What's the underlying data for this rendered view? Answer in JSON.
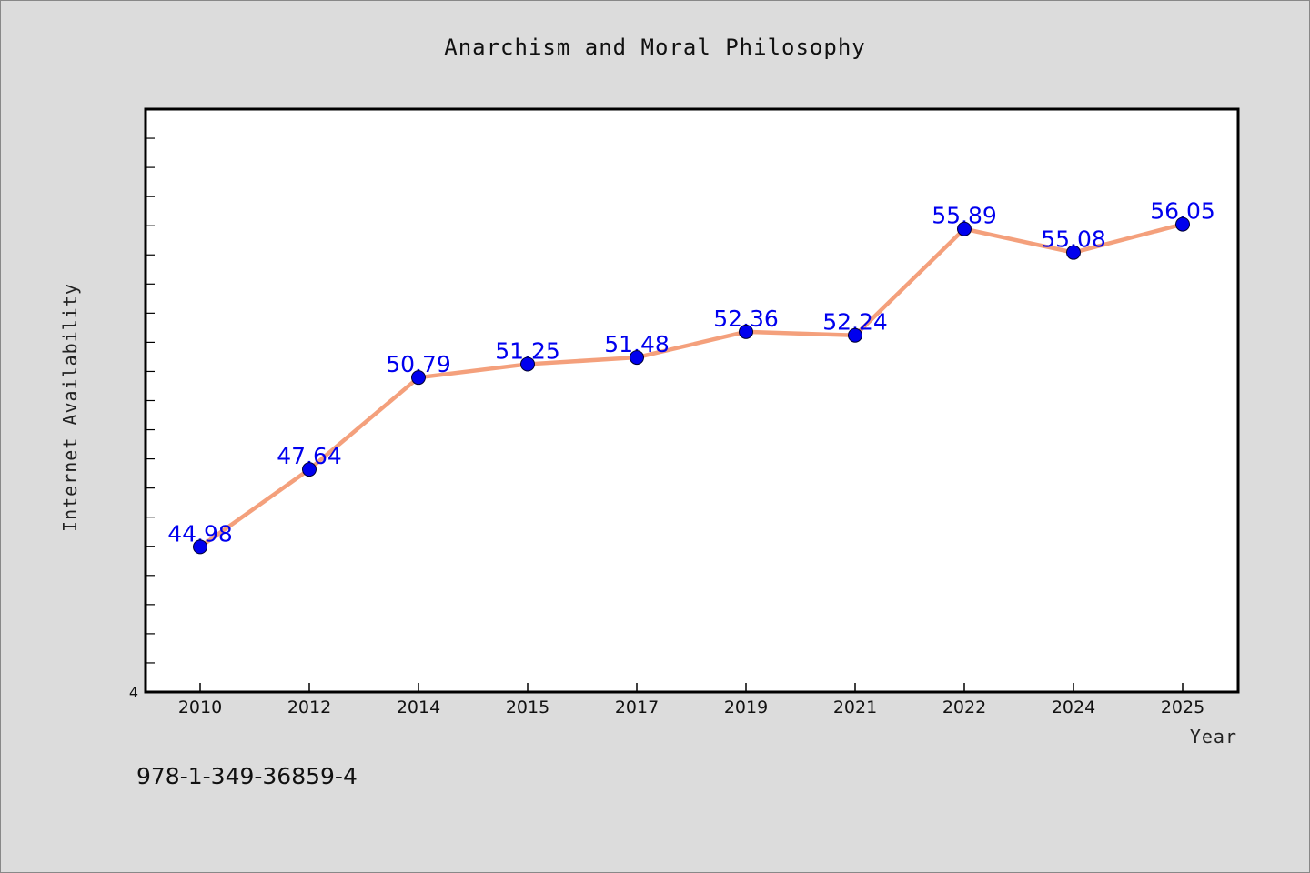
{
  "colors": {
    "background": "#dcdcdc",
    "plot_background": "#ffffff",
    "line": "#f4a07c",
    "marker": "#0000ee",
    "label": "#0000ee"
  },
  "footer": {
    "isbn": "978-1-349-36859-4"
  },
  "chart_data": {
    "type": "line",
    "title": "Anarchism and Moral Philosophy",
    "xlabel": "Year",
    "ylabel": "Internet Availability",
    "categories": [
      "2010",
      "2012",
      "2014",
      "2015",
      "2017",
      "2019",
      "2021",
      "2022",
      "2024",
      "2025"
    ],
    "series": [
      {
        "values": [
          44.98,
          47.64,
          50.79,
          51.25,
          51.48,
          52.36,
          52.24,
          55.89,
          55.08,
          56.05
        ],
        "labels": [
          "44.98",
          "47.64",
          "50.79",
          "51.25",
          "51.48",
          "52.36",
          "52.24",
          "55.89",
          "55.08",
          "56.05"
        ]
      }
    ],
    "ytick_labels": [
      "4"
    ],
    "ylim": [
      40,
      60
    ],
    "grid": false,
    "legend": "none"
  }
}
